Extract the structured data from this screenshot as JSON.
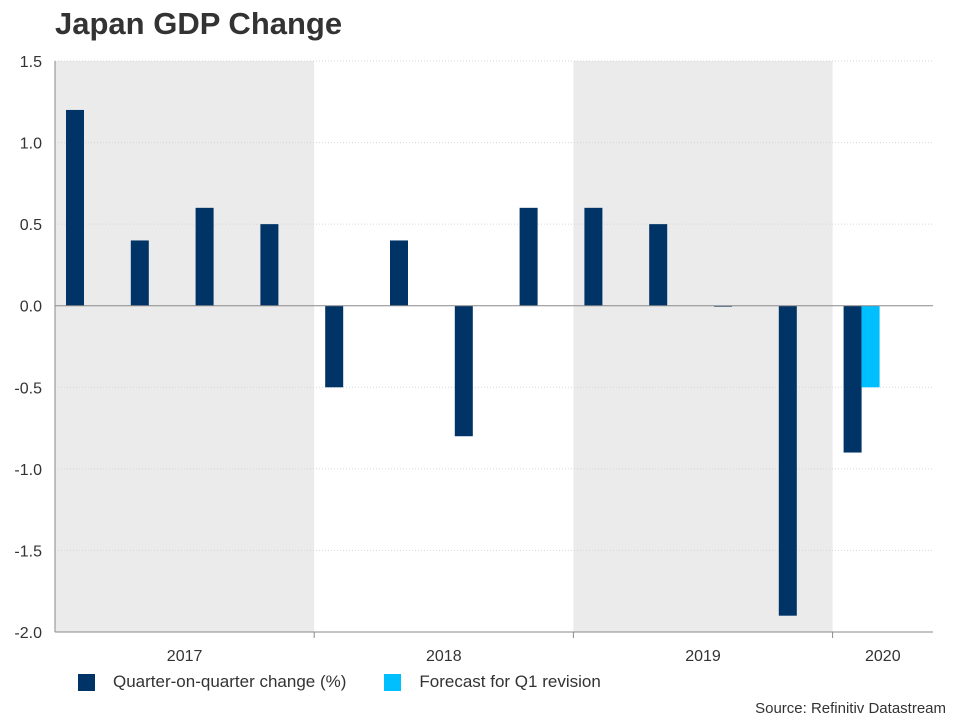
{
  "title": "Japan GDP Change",
  "source": "Source: Refinitiv Datastream",
  "colors": {
    "primary": "#003366",
    "forecast": "#00BFFF",
    "band": "#EBEBEB",
    "grid": "#D6D6D6",
    "axis": "#8A8A8A"
  },
  "chart_data": {
    "type": "bar",
    "title": "Japan GDP Change",
    "xlabel": "",
    "ylabel": "",
    "ylim": [
      -2.0,
      1.5
    ],
    "yticks": [
      "1.5",
      "1.0",
      "0.5",
      "0.0",
      "-0.5",
      "-1.0",
      "-1.5",
      "-2.0"
    ],
    "ytick_values": [
      1.5,
      1.0,
      0.5,
      0.0,
      -0.5,
      -1.0,
      -1.5,
      -2.0
    ],
    "grid": true,
    "legend_position": "bottom",
    "years": [
      "2017",
      "2018",
      "2019",
      "2020"
    ],
    "shaded_years": [
      "2017",
      "2019"
    ],
    "categories": [
      "2017 Q1",
      "2017 Q2",
      "2017 Q3",
      "2017 Q4",
      "2018 Q1",
      "2018 Q2",
      "2018 Q3",
      "2018 Q4",
      "2019 Q1",
      "2019 Q2",
      "2019 Q3",
      "2019 Q4",
      "2020 Q1"
    ],
    "series": [
      {
        "name": "Quarter-on-quarter change (%)",
        "color": "#003366",
        "values": [
          1.2,
          0.4,
          0.6,
          0.5,
          -0.5,
          0.4,
          -0.8,
          0.6,
          0.6,
          0.5,
          0.0,
          -1.9,
          -0.9
        ]
      },
      {
        "name": "Forecast for Q1 revision",
        "color": "#00BFFF",
        "values": [
          null,
          null,
          null,
          null,
          null,
          null,
          null,
          null,
          null,
          null,
          null,
          null,
          -0.5
        ]
      }
    ]
  }
}
